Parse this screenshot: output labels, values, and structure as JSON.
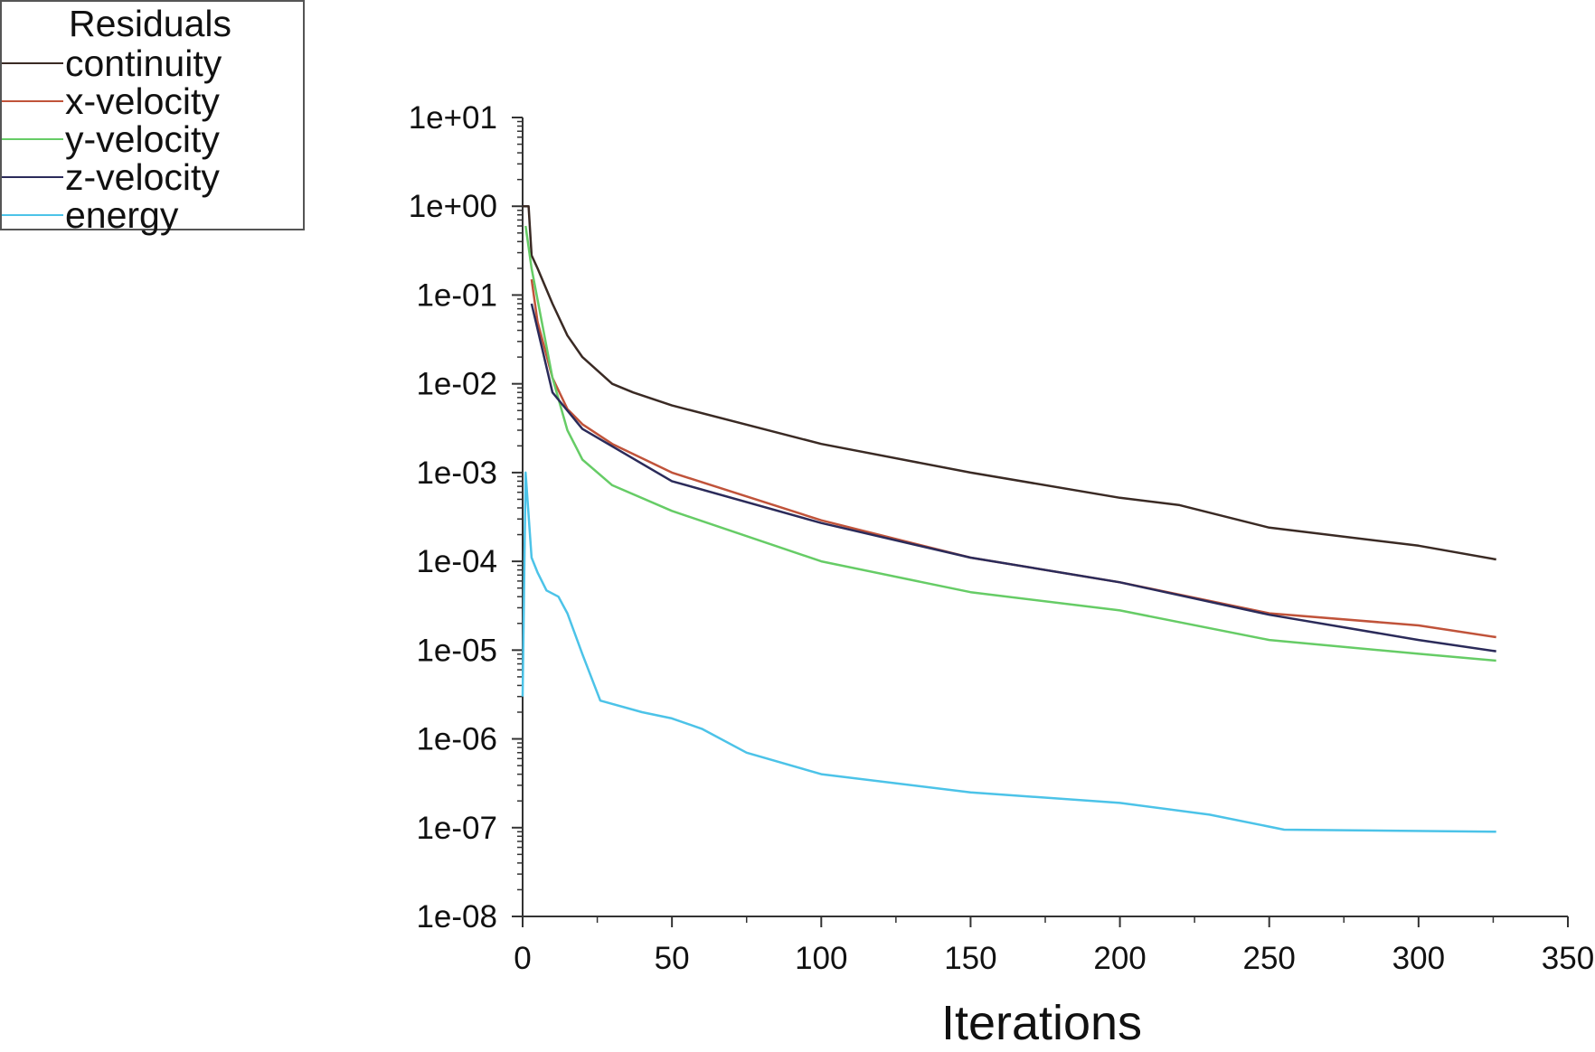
{
  "chart_data": {
    "type": "line",
    "title": "",
    "xlabel": "Iterations",
    "ylabel": "",
    "xlim": [
      0,
      350
    ],
    "ylim": [
      1e-08,
      10
    ],
    "yscale": "log",
    "grid": false,
    "legend": {
      "title": "Residuals",
      "placement": "top-left"
    },
    "x_ticks": [
      "0",
      "50",
      "100",
      "150",
      "200",
      "250",
      "300",
      "350"
    ],
    "y_ticks": [
      "1e+01",
      "1e+00",
      "1e-01",
      "1e-02",
      "1e-03",
      "1e-04",
      "1e-05",
      "1e-06",
      "1e-07",
      "1e-08"
    ],
    "series": [
      {
        "name": "continuity",
        "color": "#3a2a24",
        "x": [
          0,
          2,
          3,
          5,
          10,
          15,
          20,
          30,
          37,
          50,
          100,
          150,
          200,
          220,
          250,
          300,
          326
        ],
        "y": [
          1,
          1,
          0.28,
          0.2,
          0.08,
          0.035,
          0.02,
          0.01,
          0.008,
          0.0057,
          0.0021,
          0.001,
          0.00052,
          0.00043,
          0.00024,
          0.00015,
          0.000105
        ]
      },
      {
        "name": "x-velocity",
        "color": "#c0533a",
        "x": [
          3,
          5,
          10,
          15,
          20,
          30,
          50,
          100,
          150,
          200,
          250,
          300,
          326
        ],
        "y": [
          0.15,
          0.05,
          0.0117,
          0.0052,
          0.0035,
          0.0021,
          0.001,
          0.00029,
          0.00011,
          5.8e-05,
          2.6e-05,
          1.9e-05,
          1.4e-05
        ]
      },
      {
        "name": "y-velocity",
        "color": "#66cc66",
        "x": [
          1,
          3,
          10,
          15,
          20,
          30,
          50,
          100,
          150,
          200,
          250,
          300,
          326
        ],
        "y": [
          0.6,
          0.2,
          0.0117,
          0.003,
          0.0014,
          0.00072,
          0.00037,
          0.0001,
          4.5e-05,
          2.8e-05,
          1.3e-05,
          9.1e-06,
          7.6e-06
        ]
      },
      {
        "name": "z-velocity",
        "color": "#2b2b5a",
        "x": [
          3,
          10,
          20,
          50,
          100,
          150,
          200,
          250,
          300,
          326
        ],
        "y": [
          0.08,
          0.008,
          0.0031,
          0.0008,
          0.00027,
          0.00011,
          5.8e-05,
          2.5e-05,
          1.3e-05,
          9.7e-06
        ]
      },
      {
        "name": "energy",
        "color": "#4cc3e8",
        "x": [
          0,
          1,
          3,
          5,
          8,
          12,
          15,
          20,
          26,
          40,
          50,
          60,
          75,
          100,
          150,
          200,
          230,
          255,
          326
        ],
        "y": [
          3e-06,
          0.001,
          0.00011,
          7.5e-05,
          4.7e-05,
          4e-05,
          2.6e-05,
          9e-06,
          2.7e-06,
          2e-06,
          1.7e-06,
          1.3e-06,
          7e-07,
          4e-07,
          2.5e-07,
          1.9e-07,
          1.4e-07,
          9.5e-08,
          9e-08
        ]
      }
    ]
  }
}
